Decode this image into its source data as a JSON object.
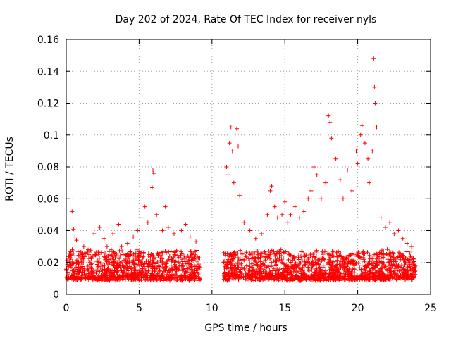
{
  "chart_data": {
    "type": "scatter",
    "title": "Day 202 of 2024, Rate Of TEC Index for receiver nyls",
    "xlabel": "GPS time / hours",
    "ylabel": "ROTI / TECUs",
    "xlim": [
      0,
      25
    ],
    "ylim": [
      0,
      0.16
    ],
    "xticks": [
      0,
      5,
      10,
      15,
      20,
      25
    ],
    "xtick_labels": [
      "0",
      "5",
      "10",
      "15",
      "20",
      "25"
    ],
    "yticks": [
      0,
      0.02,
      0.04,
      0.06,
      0.08,
      0.1,
      0.12,
      0.14,
      0.16
    ],
    "ytick_labels": [
      "0",
      "0.02",
      "0.04",
      "0.06",
      "0.08",
      "0.1",
      "0.12",
      "0.14",
      "0.16"
    ],
    "grid": true,
    "marker": "+",
    "color": "#ff0000",
    "data_gap_hours": [
      9.2,
      10.8
    ],
    "series": [
      {
        "name": "ROTI",
        "x": [
          0.4,
          0.5,
          0.6,
          0.7,
          1.2,
          1.5,
          1.9,
          2.3,
          2.6,
          2.8,
          3.2,
          3.6,
          3.8,
          4.2,
          4.6,
          4.9,
          5.2,
          5.4,
          5.6,
          5.9,
          5.95,
          6.0,
          6.2,
          6.6,
          6.8,
          7.0,
          7.4,
          7.9,
          8.2,
          8.5,
          8.9,
          11.0,
          11.1,
          11.2,
          11.3,
          11.4,
          11.5,
          11.7,
          11.8,
          11.9,
          12.2,
          12.6,
          13.0,
          13.4,
          13.8,
          14.0,
          14.1,
          14.3,
          14.5,
          14.8,
          15.0,
          15.2,
          15.4,
          15.7,
          16.0,
          16.3,
          16.6,
          16.8,
          17.0,
          17.2,
          17.5,
          17.8,
          18.0,
          18.1,
          18.2,
          18.5,
          18.8,
          19.0,
          19.3,
          19.6,
          19.9,
          20.0,
          20.2,
          20.3,
          20.5,
          20.7,
          20.8,
          21.0,
          21.1,
          21.15,
          21.2,
          21.3,
          21.6,
          21.9,
          22.2,
          22.5,
          22.8,
          23.1,
          23.4,
          23.7
        ],
        "y": [
          0.052,
          0.041,
          0.036,
          0.034,
          0.03,
          0.028,
          0.038,
          0.042,
          0.035,
          0.03,
          0.038,
          0.044,
          0.03,
          0.032,
          0.036,
          0.04,
          0.048,
          0.055,
          0.045,
          0.067,
          0.078,
          0.076,
          0.05,
          0.04,
          0.055,
          0.042,
          0.038,
          0.04,
          0.044,
          0.036,
          0.033,
          0.08,
          0.075,
          0.095,
          0.105,
          0.09,
          0.07,
          0.104,
          0.093,
          0.062,
          0.045,
          0.04,
          0.035,
          0.038,
          0.05,
          0.065,
          0.068,
          0.055,
          0.048,
          0.05,
          0.058,
          0.045,
          0.05,
          0.055,
          0.048,
          0.052,
          0.06,
          0.065,
          0.08,
          0.075,
          0.06,
          0.07,
          0.112,
          0.108,
          0.098,
          0.085,
          0.072,
          0.06,
          0.078,
          0.065,
          0.09,
          0.082,
          0.1,
          0.106,
          0.095,
          0.085,
          0.07,
          0.09,
          0.148,
          0.13,
          0.12,
          0.105,
          0.048,
          0.042,
          0.045,
          0.038,
          0.04,
          0.035,
          0.032,
          0.03
        ]
      }
    ],
    "baseline_band": {
      "segments": [
        [
          0.0,
          9.2
        ],
        [
          10.8,
          24.0
        ]
      ],
      "typical_min": 0.005,
      "typical_max": 0.028
    }
  }
}
